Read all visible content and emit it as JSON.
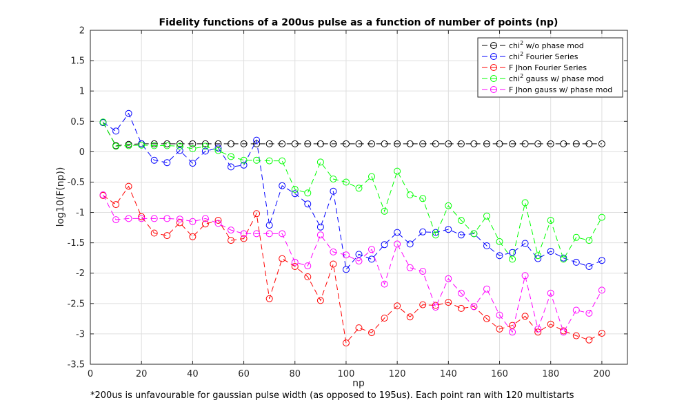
{
  "chart_data": {
    "type": "line",
    "title": "Fidelity functions of a 200us pulse as a function of number of points (np)",
    "xlabel": "np",
    "ylabel": "log10(F(np))",
    "note": "*200us is unfavourable for gaussian pulse width (as opposed to 195us). Each point ran with 120 multistarts",
    "xlim": [
      0,
      210
    ],
    "ylim": [
      -3.5,
      2
    ],
    "xticks": [
      0,
      20,
      40,
      60,
      80,
      100,
      120,
      140,
      160,
      180,
      200
    ],
    "yticks": [
      2,
      1.5,
      1,
      0.5,
      0,
      -0.5,
      -1,
      -1.5,
      -2,
      -2.5,
      -3,
      -3.5
    ],
    "grid": true,
    "legend_position": "top-right",
    "x": [
      5,
      10,
      15,
      20,
      25,
      30,
      35,
      40,
      45,
      50,
      55,
      60,
      65,
      70,
      75,
      80,
      85,
      90,
      95,
      100,
      105,
      110,
      115,
      120,
      125,
      130,
      135,
      140,
      145,
      150,
      155,
      160,
      165,
      170,
      175,
      180,
      185,
      190,
      195,
      200
    ],
    "series": [
      {
        "name_prefix": "chi",
        "name_sup": "2",
        "name_suffix": " w/o phase mod",
        "color": "#000000",
        "values": [
          0.48,
          0.1,
          0.12,
          0.13,
          0.13,
          0.13,
          0.13,
          0.13,
          0.13,
          0.13,
          0.13,
          0.13,
          0.13,
          0.13,
          0.13,
          0.13,
          0.13,
          0.13,
          0.13,
          0.13,
          0.13,
          0.13,
          0.13,
          0.13,
          0.13,
          0.13,
          0.13,
          0.13,
          0.13,
          0.13,
          0.13,
          0.13,
          0.13,
          0.13,
          0.13,
          0.13,
          0.13,
          0.13,
          0.13,
          0.13
        ]
      },
      {
        "name_prefix": "chi",
        "name_sup": "2",
        "name_suffix": " Fourier Series",
        "color": "#0000ff",
        "values": [
          0.48,
          0.34,
          0.63,
          0.13,
          -0.14,
          -0.18,
          0.02,
          -0.19,
          0.01,
          0.06,
          -0.25,
          -0.22,
          0.19,
          -1.21,
          -0.56,
          -0.69,
          -0.86,
          -1.24,
          -0.65,
          -1.94,
          -1.69,
          -1.77,
          -1.53,
          -1.33,
          -1.52,
          -1.32,
          -1.33,
          -1.28,
          -1.37,
          -1.35,
          -1.55,
          -1.71,
          -1.66,
          -1.51,
          -1.76,
          -1.64,
          -1.75,
          -1.82,
          -1.89,
          -1.79
        ]
      },
      {
        "name_prefix": "F Jhon Fourier Series",
        "name_sup": "",
        "name_suffix": "",
        "color": "#ff0000",
        "values": [
          -0.72,
          -0.87,
          -0.57,
          -1.07,
          -1.34,
          -1.38,
          -1.17,
          -1.4,
          -1.19,
          -1.13,
          -1.46,
          -1.43,
          -1.02,
          -2.42,
          -1.76,
          -1.89,
          -2.06,
          -2.45,
          -1.85,
          -3.15,
          -2.9,
          -2.98,
          -2.74,
          -2.54,
          -2.72,
          -2.52,
          -2.53,
          -2.48,
          -2.58,
          -2.55,
          -2.75,
          -2.92,
          -2.86,
          -2.71,
          -2.97,
          -2.84,
          -2.95,
          -3.03,
          -3.1,
          -2.99
        ]
      },
      {
        "name_prefix": "chi",
        "name_sup": "2",
        "name_suffix": " gauss w/ phase mod",
        "color": "#00ff00",
        "values": [
          0.49,
          0.09,
          0.1,
          0.11,
          0.1,
          0.1,
          0.09,
          0.05,
          0.09,
          0.02,
          -0.08,
          -0.14,
          -0.14,
          -0.15,
          -0.15,
          -0.62,
          -0.68,
          -0.17,
          -0.45,
          -0.5,
          -0.6,
          -0.41,
          -0.98,
          -0.32,
          -0.71,
          -0.77,
          -1.37,
          -0.89,
          -1.13,
          -1.35,
          -1.06,
          -1.48,
          -1.77,
          -0.84,
          -1.71,
          -1.13,
          -1.77,
          -1.41,
          -1.46,
          -1.08
        ]
      },
      {
        "name_prefix": "F Jhon gauss w/ phase mod",
        "name_sup": "",
        "name_suffix": "",
        "color": "#ff00ff",
        "values": [
          -0.71,
          -1.12,
          -1.1,
          -1.1,
          -1.1,
          -1.1,
          -1.11,
          -1.15,
          -1.1,
          -1.18,
          -1.29,
          -1.35,
          -1.35,
          -1.35,
          -1.35,
          -1.82,
          -1.88,
          -1.37,
          -1.65,
          -1.7,
          -1.8,
          -1.61,
          -2.18,
          -1.52,
          -1.91,
          -1.97,
          -2.56,
          -2.09,
          -2.33,
          -2.55,
          -2.26,
          -2.69,
          -2.97,
          -2.04,
          -2.92,
          -2.33,
          -2.97,
          -2.61,
          -2.66,
          -2.28
        ]
      }
    ]
  }
}
